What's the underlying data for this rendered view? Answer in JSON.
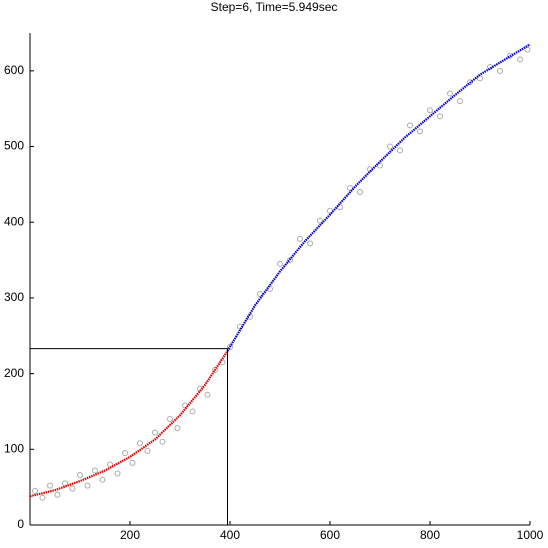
{
  "chart_data": {
    "type": "scatter",
    "title": "Step=6,  Time=5.949sec",
    "xlim": [
      0,
      1000
    ],
    "ylim": [
      0,
      650
    ],
    "xticks": [
      200,
      400,
      600,
      800,
      1000
    ],
    "yticks": [
      0,
      100,
      200,
      300,
      400,
      500,
      600
    ],
    "scatter": {
      "color": "#aaaaaa",
      "x": [
        10,
        25,
        40,
        55,
        70,
        85,
        100,
        115,
        130,
        145,
        160,
        175,
        190,
        205,
        220,
        235,
        250,
        265,
        280,
        295,
        310,
        325,
        340,
        355,
        370,
        385,
        400,
        420,
        440,
        460,
        480,
        500,
        520,
        540,
        560,
        580,
        600,
        620,
        640,
        660,
        680,
        700,
        720,
        740,
        760,
        780,
        800,
        820,
        840,
        860,
        880,
        900,
        920,
        940,
        960,
        980,
        995
      ],
      "y": [
        45,
        36,
        52,
        40,
        55,
        48,
        66,
        52,
        72,
        60,
        80,
        68,
        95,
        82,
        108,
        98,
        122,
        110,
        140,
        128,
        158,
        150,
        180,
        172,
        205,
        215,
        235,
        262,
        275,
        305,
        312,
        345,
        350,
        378,
        372,
        402,
        415,
        420,
        445,
        440,
        470,
        475,
        500,
        495,
        528,
        520,
        548,
        540,
        570,
        560,
        585,
        590,
        605,
        600,
        620,
        615,
        628
      ]
    },
    "curves": [
      {
        "color": "#dd0000",
        "x": [
          0,
          50,
          100,
          150,
          200,
          250,
          300,
          350,
          395
        ],
        "y": [
          38,
          46,
          58,
          72,
          90,
          113,
          145,
          185,
          230
        ]
      },
      {
        "color": "#0000cc",
        "x": [
          395,
          450,
          500,
          550,
          600,
          650,
          700,
          750,
          800,
          850,
          900,
          950,
          1000
        ],
        "y": [
          230,
          290,
          335,
          375,
          410,
          447,
          480,
          512,
          540,
          568,
          595,
          615,
          635
        ]
      }
    ],
    "marker": {
      "x": 395,
      "y": 233
    }
  }
}
